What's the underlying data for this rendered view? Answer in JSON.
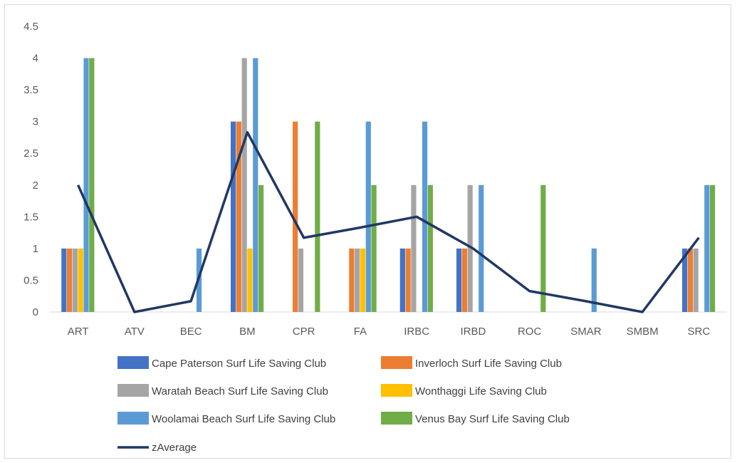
{
  "chart_data": {
    "type": "bar",
    "categories": [
      "ART",
      "ATV",
      "BEC",
      "BM",
      "CPR",
      "FA",
      "IRBC",
      "IRBD",
      "ROC",
      "SMAR",
      "SMBM",
      "SRC"
    ],
    "series": [
      {
        "name": "Cape Paterson Surf Life Saving Club",
        "color": "#4472c4",
        "values": [
          1,
          0,
          0,
          3,
          0,
          0,
          1,
          1,
          0,
          0,
          0,
          1
        ]
      },
      {
        "name": "Inverloch Surf Life Saving Club",
        "color": "#ed7d31",
        "values": [
          1,
          0,
          0,
          3,
          3,
          1,
          1,
          1,
          0,
          0,
          0,
          1
        ]
      },
      {
        "name": "Waratah Beach Surf Life Saving Club",
        "color": "#a5a5a5",
        "values": [
          1,
          0,
          0,
          4,
          1,
          1,
          2,
          2,
          0,
          0,
          0,
          1
        ]
      },
      {
        "name": "Wonthaggi Life Saving Club",
        "color": "#ffc000",
        "values": [
          1,
          0,
          0,
          1,
          0,
          1,
          0,
          0,
          0,
          0,
          0,
          0
        ]
      },
      {
        "name": "Woolamai Beach Surf Life Saving Club",
        "color": "#5b9bd5",
        "values": [
          4,
          0,
          1,
          4,
          0,
          3,
          3,
          2,
          0,
          1,
          0,
          2
        ]
      },
      {
        "name": "Venus Bay Surf Life Saving Club",
        "color": "#70ad47",
        "values": [
          4,
          0,
          0,
          2,
          3,
          2,
          2,
          0,
          2,
          0,
          0,
          2
        ]
      }
    ],
    "line_series": {
      "name": "zAverage",
      "color": "#203864",
      "values": [
        2,
        0,
        0.17,
        2.83,
        1.17,
        1.33,
        1.5,
        1,
        0.33,
        0.17,
        0,
        1.17
      ]
    },
    "ylim": [
      0,
      4.5
    ],
    "yticks": [
      "0",
      "0.5",
      "1",
      "1.5",
      "2",
      "2.5",
      "3",
      "3.5",
      "4",
      "4.5"
    ],
    "grid": false,
    "legend_position": "bottom"
  }
}
